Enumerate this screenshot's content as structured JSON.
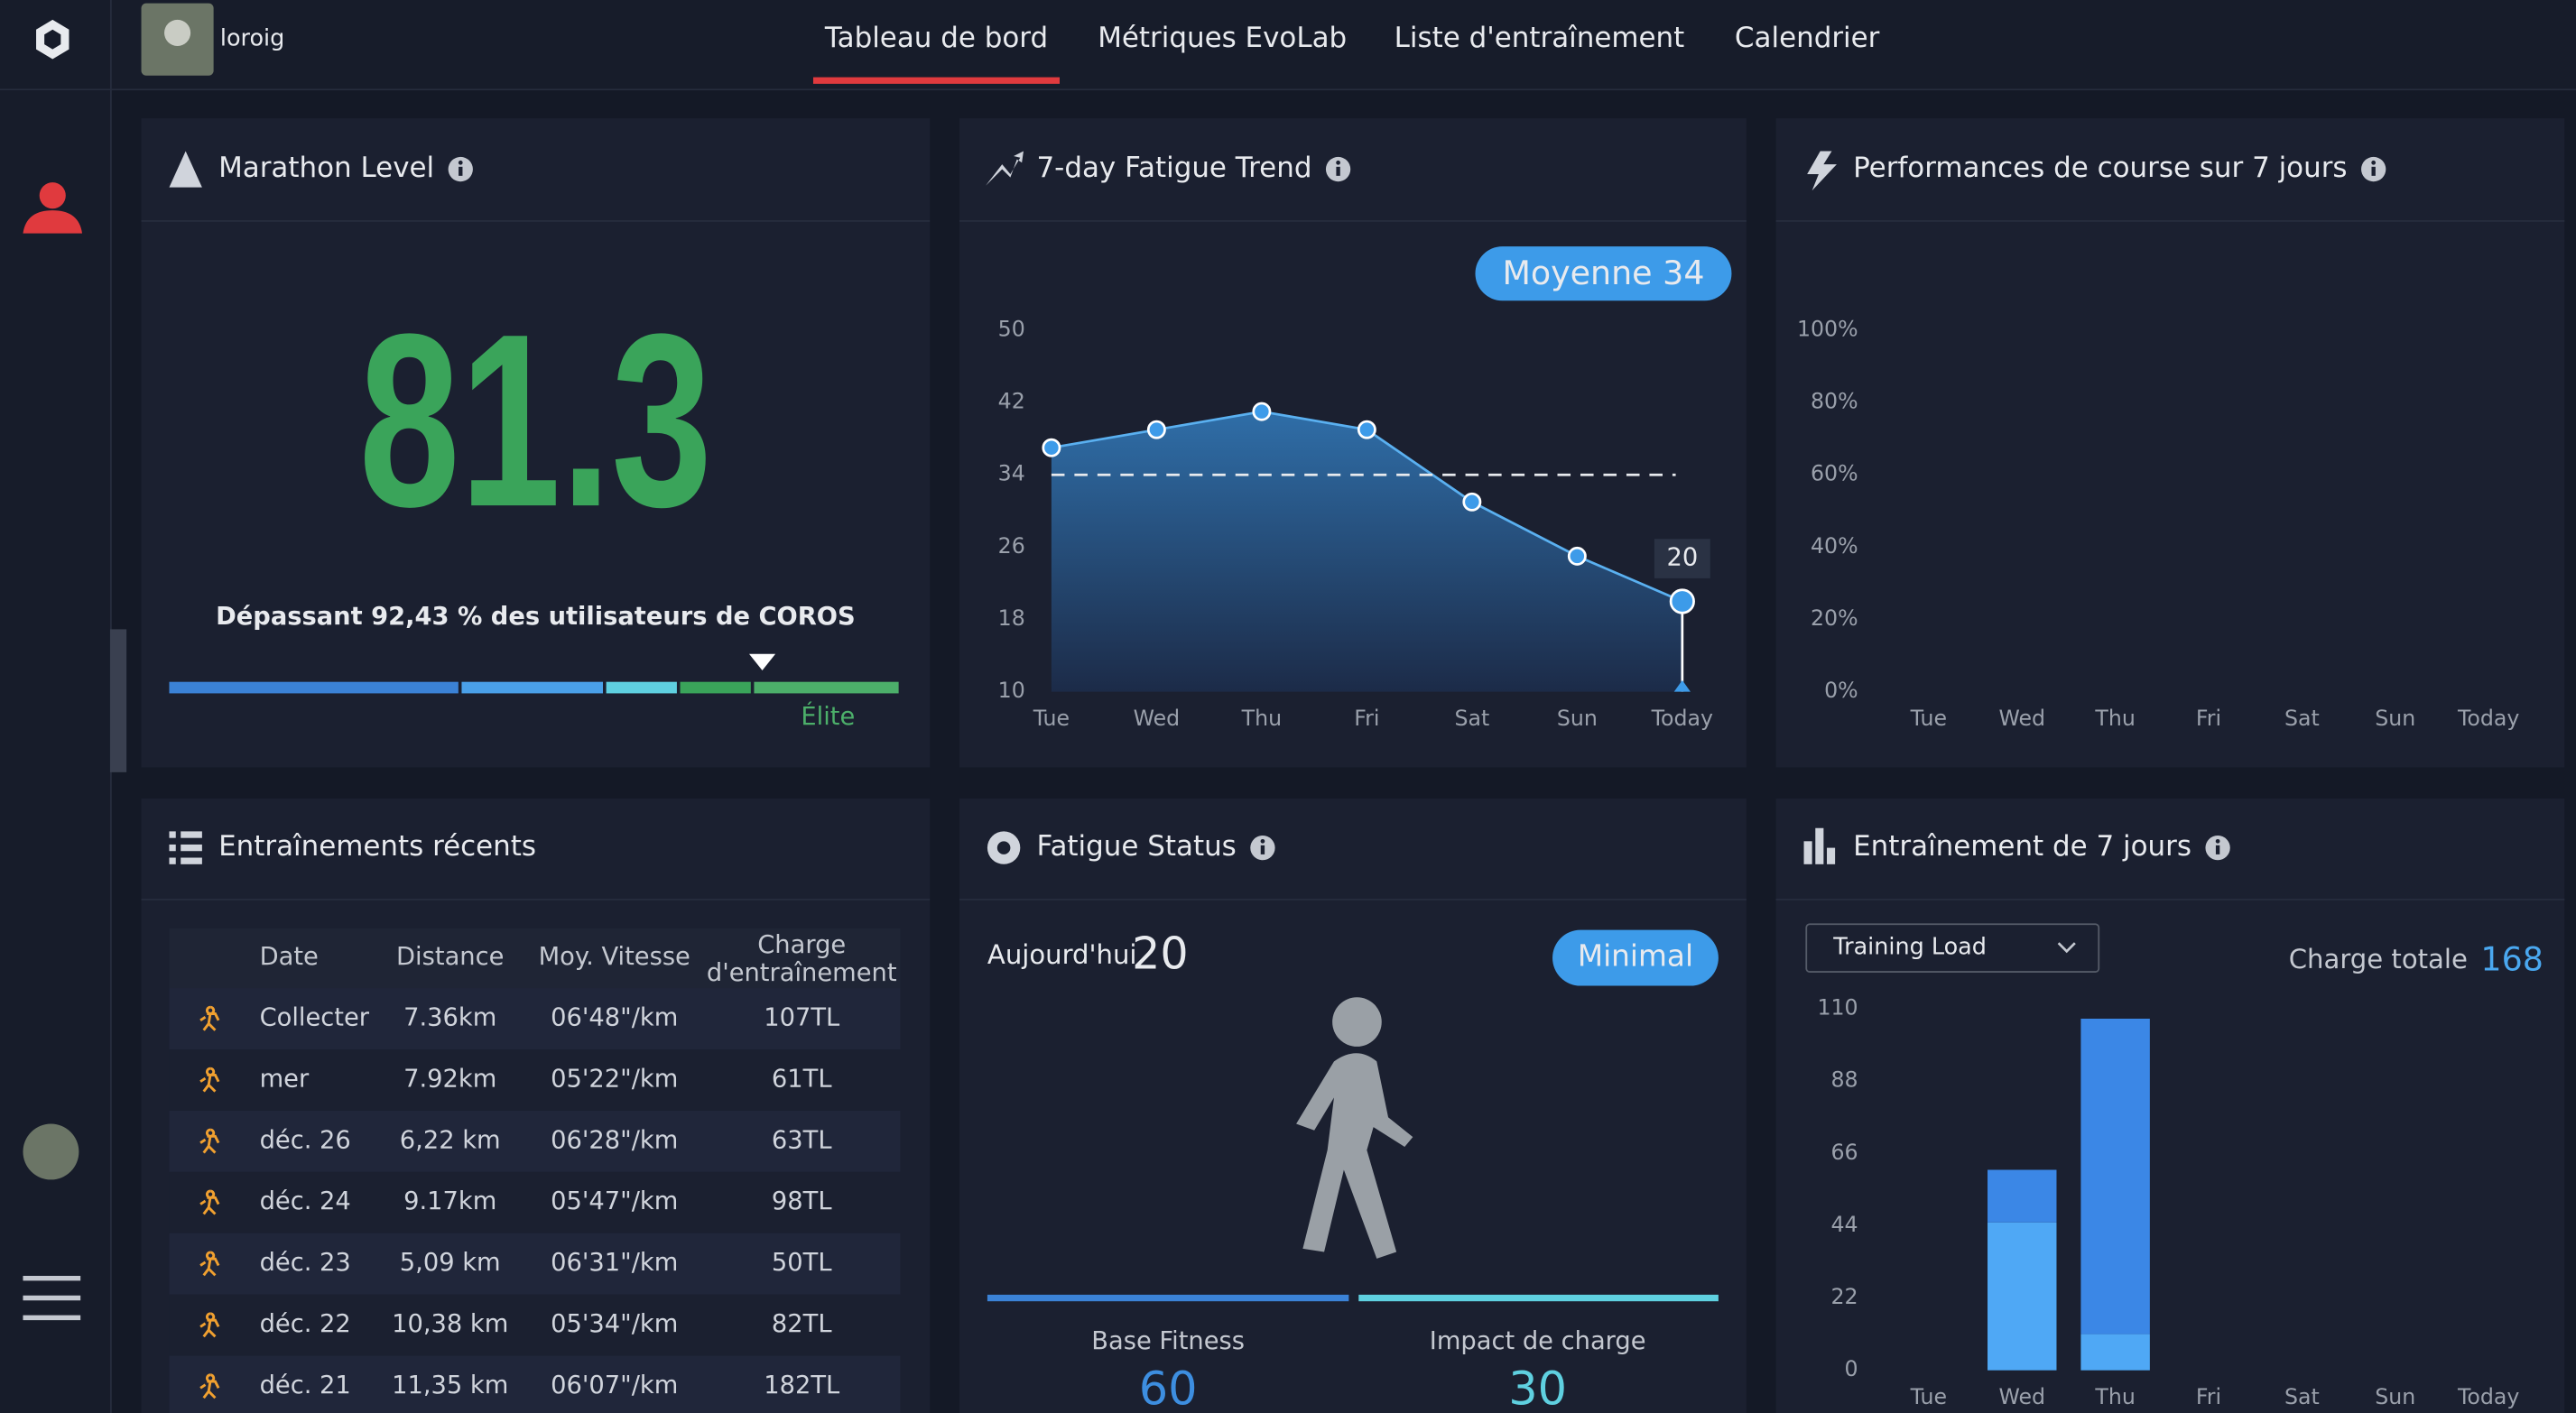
{
  "nav": {
    "username": "loroig",
    "tabs": [
      "Tableau de bord",
      "Métriques EvoLab",
      "Liste d'entraînement",
      "Calendrier"
    ]
  },
  "marathon_level": {
    "title": "Marathon Level",
    "value": 81.3,
    "subtitle": "Dépassant 92,43 % des utilisateurs de COROS",
    "level": "Élite"
  },
  "chart_data": [
    {
      "type": "line",
      "title": "7-day Fatigue Trend",
      "average_label": "Moyenne",
      "average": 34,
      "categories": [
        "Tue",
        "Wed",
        "Thu",
        "Fri",
        "Sat",
        "Sun",
        "Today"
      ],
      "values": [
        37,
        39,
        41,
        39,
        31,
        25,
        20
      ],
      "color": "#5ab0f0",
      "ylim": [
        10,
        50
      ],
      "yticks": [
        10,
        18,
        26,
        34,
        42,
        50
      ]
    },
    {
      "type": "line",
      "title": "Performances de course sur 7 jours",
      "categories": [
        "Tue",
        "Wed",
        "Thu",
        "Fri",
        "Sat",
        "Sun",
        "Today"
      ],
      "ylim": [
        0,
        100
      ],
      "yticks": [
        {
          "value": 0,
          "label": "0%"
        },
        {
          "value": 20,
          "label": "20%"
        },
        {
          "value": 40,
          "label": "40%"
        },
        {
          "value": 60,
          "label": "60%"
        },
        {
          "value": 80,
          "label": "80%"
        },
        {
          "value": 100,
          "label": "100%"
        }
      ]
    },
    {
      "type": "bar",
      "title": "Entraînement de 7 jours",
      "selector": "Training Load",
      "total_label": "Charge totale",
      "total": 168,
      "categories": [
        "Tue",
        "Wed",
        "Thu",
        "Fri",
        "Sat",
        "Sun",
        "Today"
      ],
      "series": [
        {
          "color": "#4fa8f5",
          "values": [
            null,
            45,
            11,
            null,
            null,
            null,
            null
          ]
        },
        {
          "color": "#3b87e6",
          "values": [
            null,
            16,
            96,
            null,
            null,
            null,
            null
          ]
        }
      ],
      "ylim": [
        0,
        110
      ],
      "yticks": [
        0,
        22,
        44,
        66,
        88,
        110
      ]
    }
  ],
  "recent_trainings": {
    "title": "Entraînements récents",
    "columns": [
      "Date",
      "Distance",
      "Moy. Vitesse",
      "Charge d'entraînement"
    ],
    "rows": [
      [
        "Collecter",
        "7.36km",
        "06'48\"/km",
        "107TL"
      ],
      [
        "mer",
        "7.92km",
        "05'22\"/km",
        "61TL"
      ],
      [
        "déc. 26",
        "6,22 km",
        "06'28\"/km",
        "63TL"
      ],
      [
        "déc. 24",
        "9.17km",
        "05'47\"/km",
        "98TL"
      ],
      [
        "déc. 23",
        "5,09 km",
        "06'31\"/km",
        "50TL"
      ],
      [
        "déc. 22",
        "10,38 km",
        "05'34\"/km",
        "82TL"
      ],
      [
        "déc. 21",
        "11,35 km",
        "06'07\"/km",
        "182TL"
      ]
    ]
  },
  "fatigue_status": {
    "title": "Fatigue Status",
    "today_label": "Aujourd'hui",
    "today_value": 20,
    "status": "Minimal",
    "base_fitness": {
      "label": "Base Fitness",
      "value": 60
    },
    "load_impact": {
      "label": "Impact de charge",
      "value": 30
    }
  }
}
